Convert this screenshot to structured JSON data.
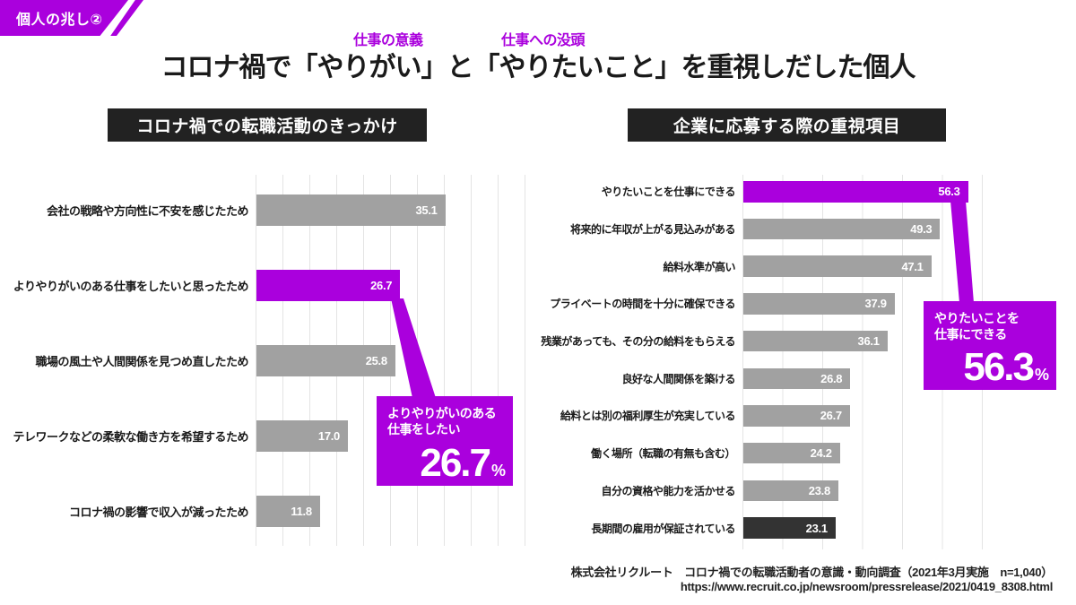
{
  "badge": {
    "label": "個人の兆し②"
  },
  "title": {
    "main": "コロナ禍で「やりがい」と「やりたいこと」を重視しだした個人",
    "annotation1": "仕事の意義",
    "annotation2": "仕事への没頭"
  },
  "colors": {
    "accent": "#aa00dd",
    "bar_gray": "#a1a1a1",
    "bar_dark": "#333333",
    "header_bg": "#222222",
    "gridline": "#e4e4e4"
  },
  "chart_data": [
    {
      "type": "bar",
      "orientation": "horizontal",
      "title": "コロナ禍での転職活動のきっかけ",
      "xlabel": "",
      "ylabel": "",
      "xlim": [
        0,
        50
      ],
      "grid_step_units": 5,
      "grid": true,
      "value_labels": "inside-end, white, one decimal",
      "categories": [
        "会社の戦略や方向性に不安を感じたため",
        "よりやりがいのある仕事をしたいと思ったため",
        "職場の風土や人間関係を見つめ直したため",
        "テレワークなどの柔軟な働き方を希望するため",
        "コロナ禍の影響で収入が減ったため"
      ],
      "values": [
        35.1,
        26.7,
        25.8,
        17.0,
        11.8
      ],
      "bar_colors": [
        "gray",
        "accent",
        "gray",
        "gray",
        "gray"
      ],
      "callout": {
        "line1": "よりやりがいのある",
        "line2": "仕事をしたい",
        "value": "26.7",
        "unit": "%"
      }
    },
    {
      "type": "bar",
      "orientation": "horizontal",
      "title": "企業に応募する際の重視項目",
      "xlabel": "",
      "ylabel": "",
      "xlim": [
        0,
        60
      ],
      "grid_step_units": 10,
      "grid": true,
      "value_labels": "inside-end, white, one decimal",
      "categories": [
        "やりたいことを仕事にできる",
        "将来的に年収が上がる見込みがある",
        "給料水準が高い",
        "プライベートの時間を十分に確保できる",
        "残業があっても、その分の給料をもらえる",
        "良好な人間関係を築ける",
        "給料とは別の福利厚生が充実している",
        "働く場所（転職の有無も含む）",
        "自分の資格や能力を活かせる",
        "長期間の雇用が保証されている"
      ],
      "values": [
        56.3,
        49.3,
        47.1,
        37.9,
        36.1,
        26.8,
        26.7,
        24.2,
        23.8,
        23.1
      ],
      "bar_colors": [
        "accent",
        "gray",
        "gray",
        "gray",
        "gray",
        "gray",
        "gray",
        "gray",
        "gray",
        "dark"
      ],
      "callout": {
        "line1": "やりたいことを",
        "line2": "仕事にできる",
        "value": "56.3",
        "unit": "%"
      }
    }
  ],
  "footer": {
    "line1": "株式会社リクルート　コロナ禍での転職活動者の意識・動向調査（2021年3月実施　n=1,040）",
    "line2": "https://www.recruit.co.jp/newsroom/pressrelease/2021/0419_8308.html"
  }
}
